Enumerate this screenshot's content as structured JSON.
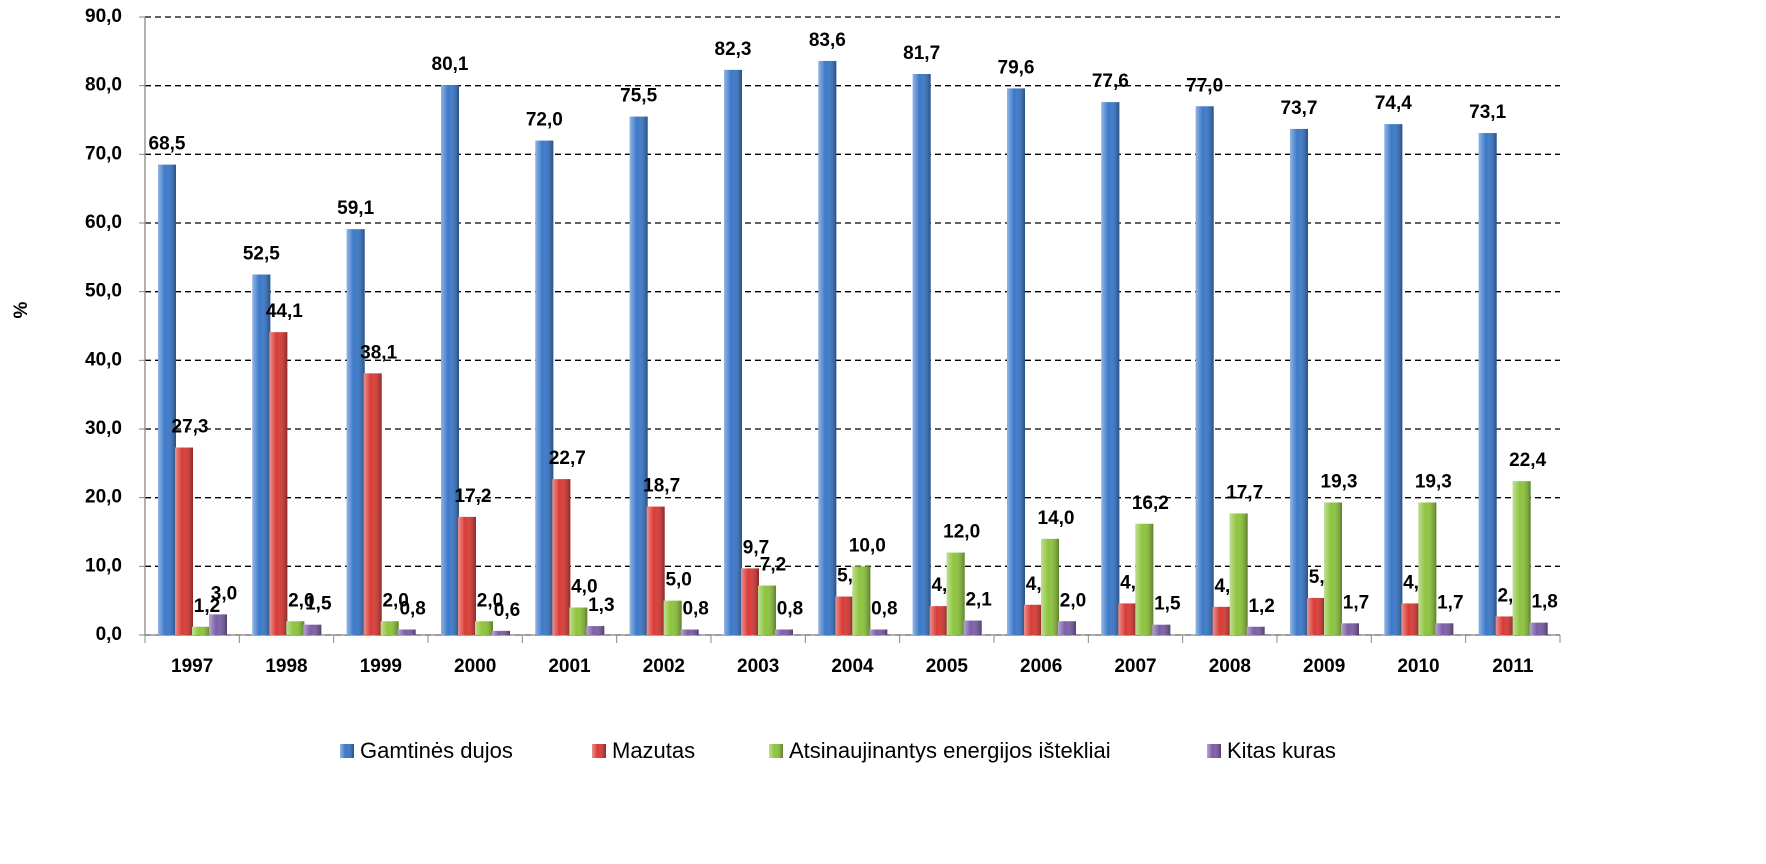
{
  "chart_data": {
    "type": "bar",
    "y_label": "%",
    "categories": [
      "1997",
      "1998",
      "1999",
      "2000",
      "2001",
      "2002",
      "2003",
      "2004",
      "2005",
      "2006",
      "2007",
      "2008",
      "2009",
      "2010",
      "2011"
    ],
    "series": [
      {
        "name": "Gamtinės dujos",
        "color": "#3a78c9",
        "values": [
          68.5,
          52.5,
          59.1,
          80.1,
          72.0,
          75.5,
          82.3,
          83.6,
          81.7,
          79.6,
          77.6,
          77.0,
          73.7,
          74.4,
          73.1
        ],
        "value_labels": [
          "68,5",
          "52,5",
          "59,1",
          "80,1",
          "72,0",
          "75,5",
          "82,3",
          "83,6",
          "81,7",
          "79,6",
          "77,6",
          "77,0",
          "73,7",
          "74,4",
          "73,1"
        ]
      },
      {
        "name": "Mazutas",
        "color": "#d93a35",
        "values": [
          27.3,
          44.1,
          38.1,
          17.2,
          22.7,
          18.7,
          9.7,
          5.6,
          4.2,
          4.4,
          4.6,
          4.1,
          5.4,
          4.6,
          2.7
        ],
        "value_labels": [
          "27,3",
          "44,1",
          "38,1",
          "17,2",
          "22,7",
          "18,7",
          "9,7",
          "5,6",
          "4,2",
          "4,4",
          "4,6",
          "4,1",
          "5,4",
          "4,6",
          "2,7"
        ]
      },
      {
        "name": "Atsinaujinantys energijos ištekliai",
        "color": "#8dc43c",
        "values": [
          1.2,
          2.0,
          2.0,
          2.0,
          4.0,
          5.0,
          7.2,
          10.0,
          12.0,
          14.0,
          16.2,
          17.7,
          19.3,
          19.3,
          22.4
        ],
        "value_labels": [
          "1,2",
          "2,0",
          "2,0",
          "2,0",
          "4,0",
          "5,0",
          "7,2",
          "10,0",
          "12,0",
          "14,0",
          "16,2",
          "17,7",
          "19,3",
          "19,3",
          "22,4"
        ]
      },
      {
        "name": "Kitas kuras",
        "color": "#7b5ea7",
        "values": [
          3.0,
          1.5,
          0.8,
          0.6,
          1.3,
          0.8,
          0.8,
          0.8,
          2.1,
          2.0,
          1.5,
          1.2,
          1.7,
          1.7,
          1.8
        ],
        "value_labels": [
          "3,0",
          "1,5",
          "0,8",
          "0,6",
          "1,3",
          "0,8",
          "0,8",
          "0,8",
          "2,1",
          "2,0",
          "1,5",
          "1,2",
          "1,7",
          "1,7",
          "1,8"
        ]
      }
    ],
    "ylim": [
      0,
      90
    ],
    "yticks": [
      {
        "value": 0,
        "label": "0,0"
      },
      {
        "value": 10,
        "label": "10,0"
      },
      {
        "value": 20,
        "label": "20,0"
      },
      {
        "value": 30,
        "label": "30,0"
      },
      {
        "value": 40,
        "label": "40,0"
      },
      {
        "value": 50,
        "label": "50,0"
      },
      {
        "value": 60,
        "label": "60,0"
      },
      {
        "value": 70,
        "label": "70,0"
      },
      {
        "value": 80,
        "label": "80,0"
      },
      {
        "value": 90,
        "label": "90,0"
      }
    ],
    "grid": true,
    "legend": "bottom"
  }
}
